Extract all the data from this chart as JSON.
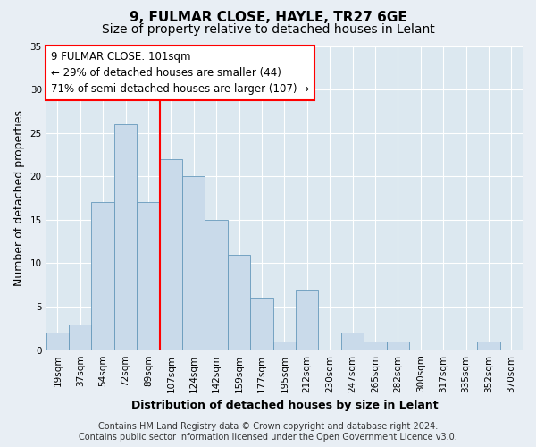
{
  "title1": "9, FULMAR CLOSE, HAYLE, TR27 6GE",
  "title2": "Size of property relative to detached houses in Lelant",
  "xlabel": "Distribution of detached houses by size in Lelant",
  "ylabel": "Number of detached properties",
  "bin_labels": [
    "19sqm",
    "37sqm",
    "54sqm",
    "72sqm",
    "89sqm",
    "107sqm",
    "124sqm",
    "142sqm",
    "159sqm",
    "177sqm",
    "195sqm",
    "212sqm",
    "230sqm",
    "247sqm",
    "265sqm",
    "282sqm",
    "300sqm",
    "317sqm",
    "335sqm",
    "352sqm",
    "370sqm"
  ],
  "bar_heights": [
    2,
    3,
    17,
    26,
    17,
    22,
    20,
    15,
    11,
    6,
    1,
    7,
    0,
    2,
    1,
    1,
    0,
    0,
    0,
    1,
    0
  ],
  "bar_color": "#c9daea",
  "bar_edgecolor": "#6699bb",
  "vline_x_index": 5,
  "vline_color": "red",
  "annotation_text": "9 FULMAR CLOSE: 101sqm\n← 29% of detached houses are smaller (44)\n71% of semi-detached houses are larger (107) →",
  "annotation_box_color": "white",
  "annotation_box_edgecolor": "red",
  "ylim": [
    0,
    35
  ],
  "yticks": [
    0,
    5,
    10,
    15,
    20,
    25,
    30,
    35
  ],
  "footer": "Contains HM Land Registry data © Crown copyright and database right 2024.\nContains public sector information licensed under the Open Government Licence v3.0.",
  "fig_background_color": "#e8eef4",
  "plot_background_color": "#dce8f0",
  "grid_color": "white",
  "title1_fontsize": 11,
  "title2_fontsize": 10,
  "axis_label_fontsize": 9,
  "tick_fontsize": 7.5,
  "annotation_fontsize": 8.5,
  "footer_fontsize": 7
}
